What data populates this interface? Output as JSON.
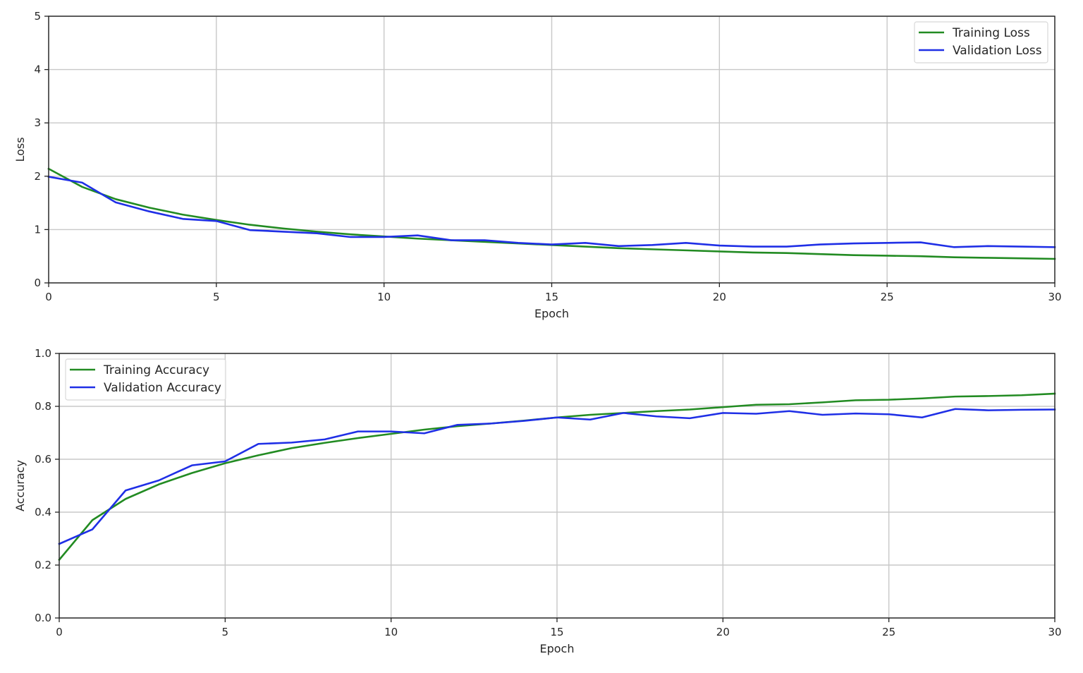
{
  "chart_data": [
    {
      "type": "line",
      "title": "",
      "xlabel": "Epoch",
      "ylabel": "Loss",
      "xlim": [
        0,
        30
      ],
      "ylim": [
        0,
        5
      ],
      "xticks": [
        "0",
        "5",
        "10",
        "15",
        "20",
        "25",
        "30"
      ],
      "yticks": [
        "0",
        "1",
        "2",
        "3",
        "4",
        "5"
      ],
      "grid": true,
      "legend_position": "top-right",
      "x": [
        0,
        1,
        2,
        3,
        4,
        5,
        6,
        7,
        8,
        9,
        10,
        11,
        12,
        13,
        14,
        15,
        16,
        17,
        18,
        19,
        20,
        21,
        22,
        23,
        24,
        25,
        26,
        27,
        28,
        29,
        30
      ],
      "series": [
        {
          "name": "Training Loss",
          "color": "#228B22",
          "values": [
            2.14,
            1.8,
            1.57,
            1.41,
            1.28,
            1.18,
            1.09,
            1.02,
            0.96,
            0.91,
            0.87,
            0.83,
            0.8,
            0.77,
            0.74,
            0.71,
            0.68,
            0.65,
            0.63,
            0.61,
            0.59,
            0.57,
            0.56,
            0.54,
            0.52,
            0.51,
            0.5,
            0.48,
            0.47,
            0.46,
            0.45
          ]
        },
        {
          "name": "Validation Loss",
          "color": "#1f2fe6",
          "values": [
            1.99,
            1.88,
            1.51,
            1.34,
            1.2,
            1.16,
            0.99,
            0.96,
            0.93,
            0.86,
            0.86,
            0.89,
            0.8,
            0.8,
            0.75,
            0.72,
            0.75,
            0.69,
            0.71,
            0.75,
            0.7,
            0.68,
            0.68,
            0.72,
            0.74,
            0.75,
            0.76,
            0.67,
            0.69,
            0.68,
            0.67
          ]
        }
      ]
    },
    {
      "type": "line",
      "title": "",
      "xlabel": "Epoch",
      "ylabel": "Accuracy",
      "xlim": [
        0,
        30
      ],
      "ylim": [
        0,
        1
      ],
      "xticks": [
        "0",
        "5",
        "10",
        "15",
        "20",
        "25",
        "30"
      ],
      "yticks": [
        "0.0",
        "0.2",
        "0.4",
        "0.6",
        "0.8",
        "1.0"
      ],
      "grid": true,
      "legend_position": "top-left",
      "x": [
        0,
        1,
        2,
        3,
        4,
        5,
        6,
        7,
        8,
        9,
        10,
        11,
        12,
        13,
        14,
        15,
        16,
        17,
        18,
        19,
        20,
        21,
        22,
        23,
        24,
        25,
        26,
        27,
        28,
        29,
        30
      ],
      "series": [
        {
          "name": "Training Accuracy",
          "color": "#228B22",
          "values": [
            0.22,
            0.37,
            0.45,
            0.505,
            0.548,
            0.585,
            0.615,
            0.642,
            0.662,
            0.68,
            0.696,
            0.712,
            0.725,
            0.735,
            0.746,
            0.758,
            0.768,
            0.775,
            0.782,
            0.788,
            0.797,
            0.806,
            0.808,
            0.815,
            0.823,
            0.825,
            0.83,
            0.837,
            0.839,
            0.842,
            0.848
          ]
        },
        {
          "name": "Validation Accuracy",
          "color": "#1f2fe6",
          "values": [
            0.28,
            0.335,
            0.482,
            0.52,
            0.577,
            0.592,
            0.658,
            0.663,
            0.675,
            0.705,
            0.705,
            0.698,
            0.73,
            0.735,
            0.745,
            0.758,
            0.75,
            0.775,
            0.762,
            0.755,
            0.775,
            0.772,
            0.782,
            0.768,
            0.773,
            0.77,
            0.758,
            0.79,
            0.785,
            0.787,
            0.788
          ]
        }
      ]
    }
  ]
}
